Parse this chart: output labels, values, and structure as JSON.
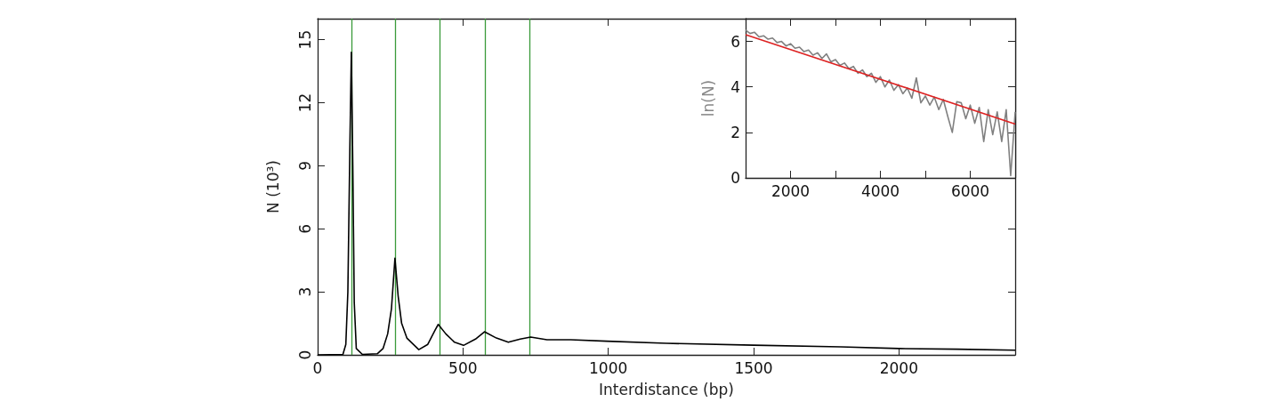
{
  "chart_data": [
    {
      "type": "line",
      "xlabel": "Interdistance (bp)",
      "ylabel": "N (10³)",
      "xlim": [
        0,
        2400
      ],
      "ylim": [
        0,
        16
      ],
      "xticks": [
        0,
        500,
        1000,
        1500,
        2000
      ],
      "yticks": [
        0,
        3,
        6,
        9,
        12,
        15
      ],
      "grid": false,
      "marker": "none",
      "series": [
        {
          "color": "#000000",
          "x": [
            0,
            87,
            97,
            104,
            111,
            116,
            121,
            126,
            133,
            154,
            205,
            225,
            241,
            254,
            266,
            277,
            289,
            307,
            348,
            379,
            405,
            415,
            441,
            471,
            502,
            543,
            574,
            615,
            656,
            697,
            733,
            789,
            871,
            994,
            1200,
            1500,
            1800,
            2000,
            2200,
            2400
          ],
          "values": [
            0,
            0.02,
            0.5,
            3,
            10,
            14.4,
            9,
            2.5,
            0.3,
            0.02,
            0.05,
            0.3,
            1.0,
            2.2,
            4.6,
            2.8,
            1.5,
            0.8,
            0.25,
            0.5,
            1.2,
            1.45,
            1.0,
            0.6,
            0.45,
            0.75,
            1.1,
            0.8,
            0.6,
            0.75,
            0.85,
            0.72,
            0.72,
            0.65,
            0.55,
            0.46,
            0.38,
            0.3,
            0.27,
            0.22
          ]
        }
      ],
      "ref_lines": [
        {
          "axis": "x",
          "value": 116,
          "color": "#3a9a3a"
        },
        {
          "axis": "x",
          "value": 266,
          "color": "#3a9a3a"
        },
        {
          "axis": "x",
          "value": 421,
          "color": "#3a9a3a"
        },
        {
          "axis": "x",
          "value": 575,
          "color": "#3a9a3a"
        },
        {
          "axis": "x",
          "value": 730,
          "color": "#3a9a3a"
        }
      ]
    },
    {
      "type": "line",
      "ylabel": "ln(N)",
      "xlim": [
        1000,
        7000
      ],
      "ylim": [
        0,
        7
      ],
      "xticks": [
        2000,
        {
          "value": 3000,
          "label": null
        },
        4000,
        {
          "value": 5000,
          "label": null
        },
        6000
      ],
      "yticks": [
        0,
        2,
        4,
        6
      ],
      "grid": false,
      "marker": "none",
      "series": [
        {
          "color": "#808080",
          "x": [
            1000,
            1100,
            1200,
            1300,
            1400,
            1500,
            1600,
            1700,
            1800,
            1900,
            2000,
            2100,
            2200,
            2300,
            2400,
            2500,
            2600,
            2700,
            2800,
            2900,
            3000,
            3100,
            3200,
            3300,
            3400,
            3500,
            3600,
            3700,
            3800,
            3900,
            4000,
            4100,
            4200,
            4300,
            4400,
            4500,
            4600,
            4700,
            4800,
            4900,
            5000,
            5100,
            5200,
            5300,
            5400,
            5500,
            5600,
            5700,
            5800,
            5900,
            6000,
            6100,
            6200,
            6300,
            6400,
            6500,
            6600,
            6700,
            6800,
            6900,
            7000
          ],
          "values": [
            6.5,
            6.35,
            6.4,
            6.2,
            6.25,
            6.1,
            6.15,
            5.95,
            6.0,
            5.8,
            5.9,
            5.7,
            5.75,
            5.55,
            5.62,
            5.4,
            5.5,
            5.25,
            5.45,
            5.1,
            5.2,
            4.95,
            5.05,
            4.8,
            4.9,
            4.6,
            4.75,
            4.45,
            4.6,
            4.2,
            4.45,
            4.0,
            4.3,
            3.85,
            4.1,
            3.7,
            3.95,
            3.5,
            4.4,
            3.3,
            3.6,
            3.2,
            3.55,
            3.0,
            3.45,
            2.7,
            2.0,
            3.35,
            3.3,
            2.6,
            3.2,
            2.4,
            3.1,
            1.6,
            3.0,
            1.9,
            2.9,
            1.6,
            3.0,
            0.1,
            2.9
          ]
        },
        {
          "color": "#dd2222",
          "x": [
            1000,
            7000
          ],
          "values": [
            6.3,
            2.37
          ]
        }
      ]
    }
  ]
}
